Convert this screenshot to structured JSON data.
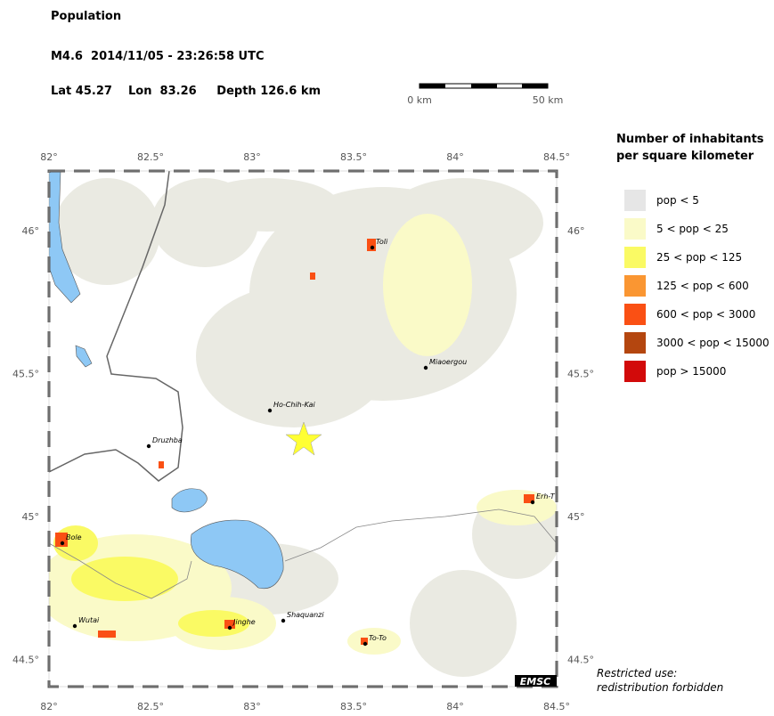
{
  "header": {
    "title": "Population",
    "event": "M4.6  2014/11/05 - 23:26:58 UTC",
    "location": "Lat 45.27    Lon  83.26     Depth 126.6 km"
  },
  "scale_bar": {
    "start": "0 km",
    "end": "50 km"
  },
  "map": {
    "lon_ticks": [
      "82°",
      "82.5°",
      "83°",
      "83.5°",
      "84°",
      "84.5°"
    ],
    "lat_ticks": [
      "46°",
      "45.5°",
      "45°",
      "44.5°"
    ],
    "places": [
      "Toli",
      "Miaoergou",
      "Ho-Chih-Kai",
      "Druzhba",
      "Erh-T",
      "Bole",
      "Wutai",
      "Jinghe",
      "Shaquanzi",
      "To-To"
    ],
    "badge": "EMSC"
  },
  "legend": {
    "title": [
      "Number of inhabitants",
      "per square kilometer"
    ],
    "items": [
      {
        "label": "pop < 5",
        "color": "#e6e6e6"
      },
      {
        "label": "5 < pop < 25",
        "color": "#fafac8"
      },
      {
        "label": "25 < pop < 125",
        "color": "#fafa64"
      },
      {
        "label": "125 < pop < 600",
        "color": "#fa9632"
      },
      {
        "label": "600 < pop < 3000",
        "color": "#fa5014"
      },
      {
        "label": "3000 < pop < 15000",
        "color": "#b4460f"
      },
      {
        "label": "pop > 15000",
        "color": "#d20a0a"
      }
    ]
  },
  "footer": [
    "Restricted use:",
    "redistribution forbidden"
  ]
}
